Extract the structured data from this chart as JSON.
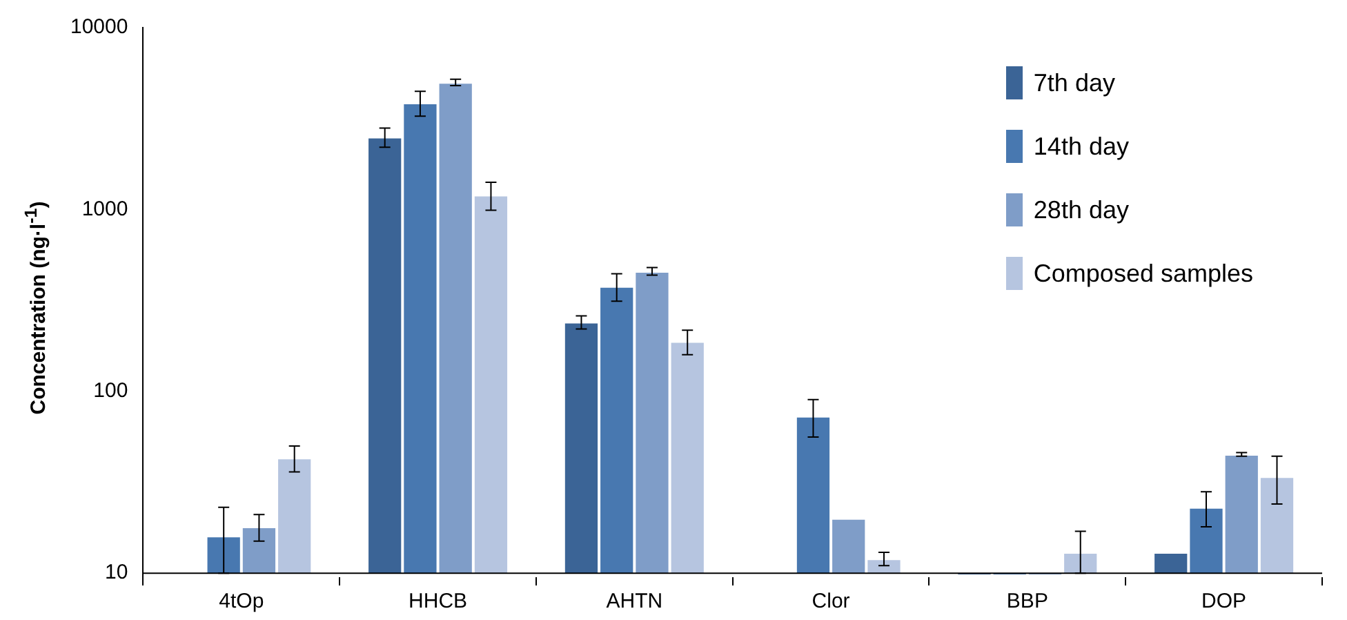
{
  "chart_data": {
    "type": "bar",
    "ylabel": "Concentration (ng·l$^{-1}$)",
    "categories": [
      "4tOp",
      "HHCB",
      "AHTN",
      "Clor",
      "BBP",
      "DOP"
    ],
    "series": [
      {
        "name": "7th day",
        "color": "#3b6496",
        "values": [
          null,
          2500,
          240,
          null,
          9.7,
          13
        ],
        "errors": [
          null,
          300,
          20,
          null,
          null,
          null
        ]
      },
      {
        "name": "14th day",
        "color": "#4878b0",
        "values": [
          16,
          3860,
          378,
          73,
          9.7,
          23
        ],
        "errors": [
          [
            10,
            23
          ],
          600,
          65,
          17,
          null,
          5
        ]
      },
      {
        "name": "28th day",
        "color": "#7f9dc8",
        "values": [
          18,
          5000,
          457,
          20,
          9.7,
          45
        ],
        "errors": [
          3,
          200,
          22,
          null,
          null,
          1
        ]
      },
      {
        "name": "Composed samples",
        "color": "#b6c5e0",
        "values": [
          43,
          1200,
          188,
          12,
          13,
          34
        ],
        "errors": [
          7,
          210,
          29,
          1,
          [
            10,
            17
          ],
          10
        ]
      }
    ],
    "log": true,
    "ylim": [
      9.5,
      10000
    ],
    "yticks": [
      10,
      100,
      1000,
      10000
    ],
    "grid": false,
    "legend": "top right"
  }
}
